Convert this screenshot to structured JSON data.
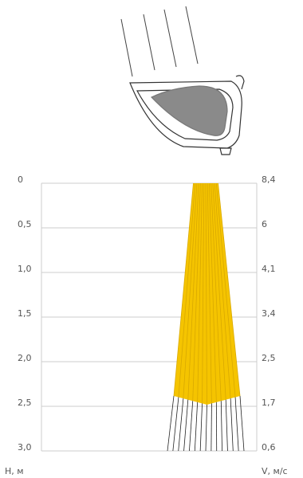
{
  "left_axis": {
    "title": "H, м",
    "labels": [
      "0",
      "0,5",
      "1,0",
      "1,5",
      "2,0",
      "2,5",
      "3,0"
    ]
  },
  "right_axis": {
    "title": "V, м/с",
    "labels": [
      "8,4",
      "6",
      "4,1",
      "3,4",
      "2,5",
      "1,7",
      "0,6"
    ]
  }
}
